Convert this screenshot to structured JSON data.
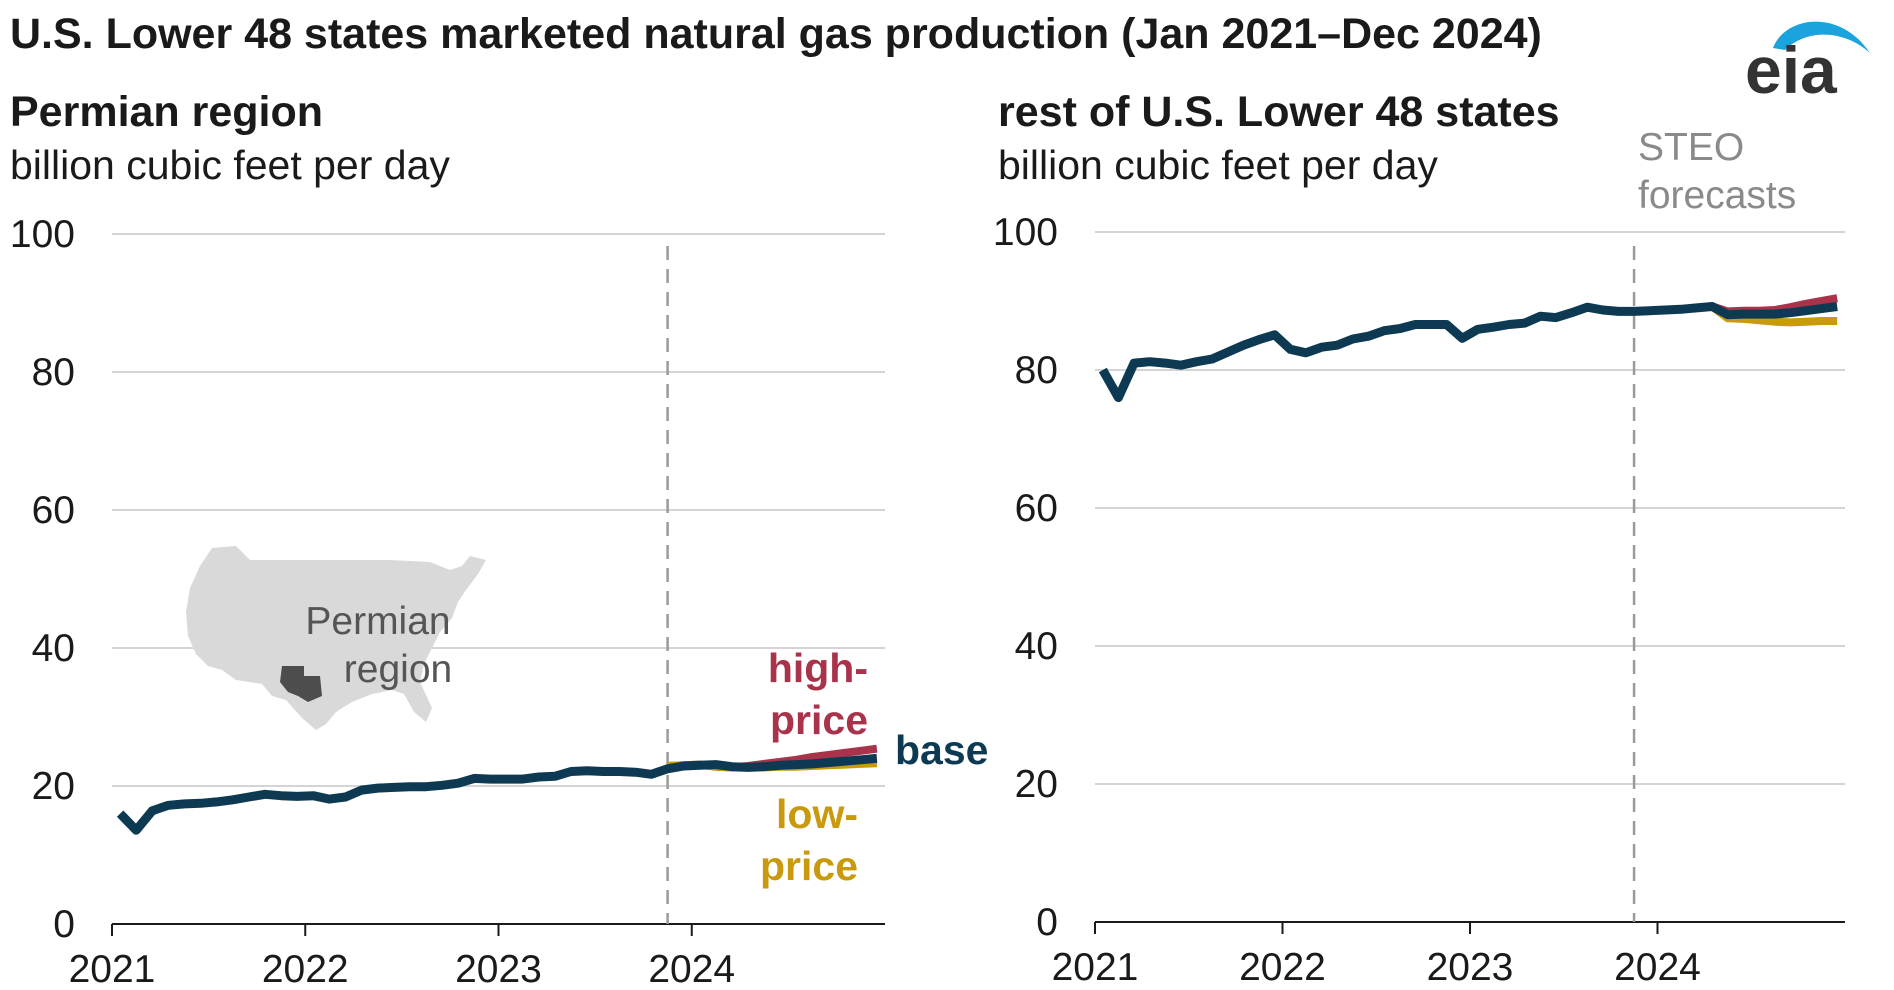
{
  "title": "U.S. Lower 48 states marketed natural gas production (Jan 2021–Dec 2024)",
  "logo": {
    "text": "eia",
    "icon": "eia-logo-swoosh-icon"
  },
  "colors": {
    "base": "#0d3a52",
    "high": "#a8334a",
    "low": "#c99a0d",
    "grid": "#d4d4d4",
    "forecast_line": "#9a9a9a",
    "map_fill": "#d9d9d9",
    "permian_fill": "#4d4d4d"
  },
  "panels": {
    "left": {
      "title": "Permian region",
      "unit": "billion cubic feet per day",
      "map_label_line1": "Permian",
      "map_label_line2": "region",
      "high_label_line1": "high-",
      "high_label_line2": "price",
      "base_label": "base",
      "low_label_line1": "low-",
      "low_label_line2": "price"
    },
    "right": {
      "title": "rest of U.S. Lower 48 states",
      "unit": "billion cubic feet per day",
      "steo_line1": "STEO",
      "steo_line2": "forecasts"
    }
  },
  "chart_data": [
    {
      "type": "line",
      "title": "Permian region",
      "ylabel": "billion cubic feet per day",
      "ylim": [
        0,
        100
      ],
      "yticks": [
        "0",
        "20",
        "40",
        "60",
        "80",
        "100"
      ],
      "xticks": [
        "2021",
        "2022",
        "2023",
        "2024"
      ],
      "x_start": "2021-01",
      "x_end": "2024-12",
      "forecast_start": "2023-11",
      "grid": true,
      "series": [
        {
          "name": "base",
          "start": "2021-01",
          "values": [
            16.0,
            13.6,
            16.4,
            17.2,
            17.4,
            17.5,
            17.7,
            18.0,
            18.4,
            18.8,
            18.6,
            18.5,
            18.6,
            18.1,
            18.4,
            19.4,
            19.7,
            19.8,
            19.9,
            19.9,
            20.1,
            20.4,
            21.1,
            21.0,
            21.0,
            21.0,
            21.3,
            21.4,
            22.1,
            22.2,
            22.1,
            22.1,
            22.0,
            21.7,
            22.5,
            22.9,
            23.0,
            23.1,
            22.8,
            22.7,
            22.8,
            23.0,
            23.1,
            23.2,
            23.4,
            23.6,
            23.8,
            24.0
          ]
        },
        {
          "name": "high-price",
          "start": "2023-11",
          "values": [
            22.9,
            23.0,
            23.1,
            22.8,
            22.7,
            22.9,
            23.2,
            23.5,
            23.8,
            24.2,
            24.5,
            24.8,
            25.1,
            25.4
          ]
        },
        {
          "name": "low-price",
          "start": "2023-11",
          "values": [
            22.9,
            23.0,
            23.1,
            22.8,
            22.7,
            22.7,
            22.7,
            22.8,
            22.8,
            22.9,
            23.0,
            23.1,
            23.2,
            23.3
          ]
        }
      ]
    },
    {
      "type": "line",
      "title": "rest of U.S. Lower 48 states",
      "ylabel": "billion cubic feet per day",
      "ylim": [
        0,
        100
      ],
      "yticks": [
        "0",
        "20",
        "40",
        "60",
        "80",
        "100"
      ],
      "xticks": [
        "2021",
        "2022",
        "2023",
        "2024"
      ],
      "x_start": "2021-01",
      "x_end": "2024-12",
      "forecast_start": "2023-11",
      "grid": true,
      "series": [
        {
          "name": "base",
          "start": "2021-01",
          "values": [
            80.0,
            76.0,
            81.0,
            81.2,
            81.0,
            80.7,
            81.2,
            81.6,
            82.6,
            83.6,
            84.4,
            85.1,
            83.0,
            82.5,
            83.3,
            83.6,
            84.5,
            84.9,
            85.7,
            86.0,
            86.6,
            86.6,
            86.6,
            84.6,
            85.9,
            86.2,
            86.6,
            86.8,
            87.8,
            87.6,
            88.3,
            89.1,
            88.7,
            88.5,
            88.5,
            88.6,
            88.7,
            88.8,
            89.0,
            89.2,
            88.0,
            88.1,
            88.1,
            88.1,
            88.3,
            88.6,
            88.9,
            89.2
          ]
        },
        {
          "name": "high-price",
          "start": "2023-11",
          "values": [
            88.5,
            88.6,
            88.7,
            88.8,
            89.0,
            89.2,
            88.5,
            88.6,
            88.6,
            88.7,
            89.1,
            89.6,
            90.0,
            90.4
          ]
        },
        {
          "name": "low-price",
          "start": "2023-11",
          "values": [
            88.5,
            88.6,
            88.7,
            88.8,
            89.0,
            89.2,
            87.5,
            87.4,
            87.2,
            87.0,
            86.9,
            87.0,
            87.1,
            87.1
          ]
        }
      ]
    }
  ]
}
